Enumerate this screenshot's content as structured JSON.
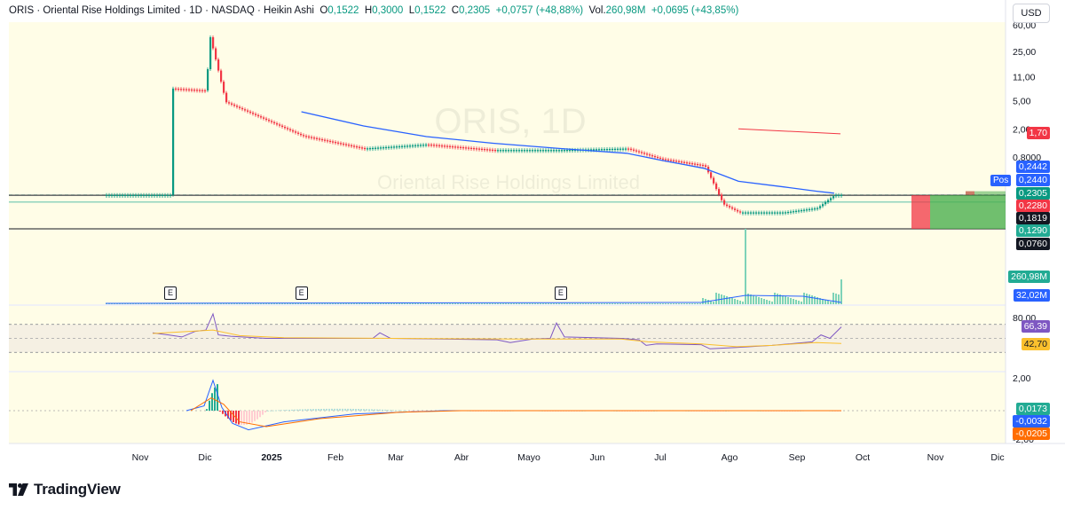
{
  "header": {
    "symbol": "ORIS",
    "description": "Oriental Rise Holdings Limited",
    "interval": "1D",
    "exchange": "NASDAQ",
    "chart_style": "Heikin Ashi",
    "open_label": "O",
    "open": "0,1522",
    "high_label": "H",
    "high": "0,3000",
    "low_label": "L",
    "low": "0,1522",
    "close_label": "C",
    "close": "0,2305",
    "change": "+0,0757 (+48,88%)",
    "vol_label": "Vol.",
    "volume": "260,98M",
    "vol_change": "+0,0695 (+43,85%)"
  },
  "currency_button": "USD",
  "watermark": {
    "title": "ORIS, 1D",
    "subtitle": "Oriental Rise Holdings Limited"
  },
  "footer": {
    "brand": "TradingView"
  },
  "position_tag": "Pos",
  "earnings_marker": "E",
  "price_axis": {
    "ticks": [
      "60,00",
      "25,00",
      "11,00",
      "5,00",
      "2,00",
      "0,8000"
    ],
    "labels": [
      {
        "text": "1,70",
        "color": "#f23645"
      },
      {
        "text": "0,2442",
        "color": "#2962ff"
      },
      {
        "text": "0,2440",
        "color": "#2962ff"
      },
      {
        "text": "0,2305",
        "color": "#089981"
      },
      {
        "text": "0,2280",
        "color": "#f23645"
      },
      {
        "text": "0,1819",
        "color": "#131722"
      },
      {
        "text": "0,1290",
        "color": "#22ab94"
      },
      {
        "text": "0,0760",
        "color": "#131722"
      }
    ]
  },
  "volume_axis": {
    "labels": [
      {
        "text": "260,98M",
        "color": "#22ab94"
      },
      {
        "text": "32,02M",
        "color": "#2962ff"
      }
    ]
  },
  "rsi_axis": {
    "ticks": [
      "80,00"
    ],
    "labels": [
      {
        "text": "66,39",
        "color": "#7e57c2"
      },
      {
        "text": "42,70",
        "color": "#fbc02d"
      }
    ]
  },
  "macd_axis": {
    "ticks": [
      "2,00",
      "-2,00"
    ],
    "labels": [
      {
        "text": "0,0173",
        "color": "#22ab94"
      },
      {
        "text": "-0,0032",
        "color": "#2962ff"
      },
      {
        "text": "-0,0205",
        "color": "#ff6d00"
      }
    ]
  },
  "chart_data": {
    "type": "line",
    "title": "ORIS · Oriental Rise Holdings Limited · 1D · NASDAQ · Heikin Ashi",
    "x_ticks": [
      "Nov",
      "Dic",
      "2025",
      "Feb",
      "Mar",
      "Abr",
      "Mayo",
      "Jun",
      "Jul",
      "Ago",
      "Sep",
      "Oct",
      "Nov",
      "Dic"
    ],
    "y_scale": "log",
    "x": [
      "2024-11",
      "2024-12-01",
      "2024-12-03",
      "2024-12-10",
      "2025-01",
      "2025-02",
      "2025-03",
      "2025-04",
      "2025-05",
      "2025-06",
      "2025-07-01",
      "2025-07-20",
      "2025-07-28",
      "2025-08-05",
      "2025-08-25",
      "2025-09-10",
      "2025-09-18"
    ],
    "series": [
      {
        "values": [
          7.5,
          7.0,
          40,
          4.8,
          1.6,
          1.05,
          1.2,
          1.0,
          1.0,
          1.05,
          0.75,
          0.6,
          0.17,
          0.13,
          0.13,
          0.15,
          0.2305
        ]
      }
    ],
    "moving_average": [
      null,
      null,
      null,
      null,
      3.5,
      2.2,
      1.55,
      1.25,
      1.05,
      0.9,
      0.72,
      0.55,
      0.44,
      0.36,
      0.3,
      0.26,
      0.2442
    ],
    "volume_last": "260,98M",
    "volume_ma_last": "32,02M",
    "rsi": {
      "last": 66.39,
      "ma": 42.7,
      "upper_band": 70,
      "lower_band": 30
    },
    "macd": {
      "histogram": 0.0173,
      "macd": -0.0032,
      "signal": -0.0205
    },
    "earnings_markers": [
      "2024-11",
      "2025-01",
      "2025-05"
    ],
    "red_line_level": 1.7
  }
}
